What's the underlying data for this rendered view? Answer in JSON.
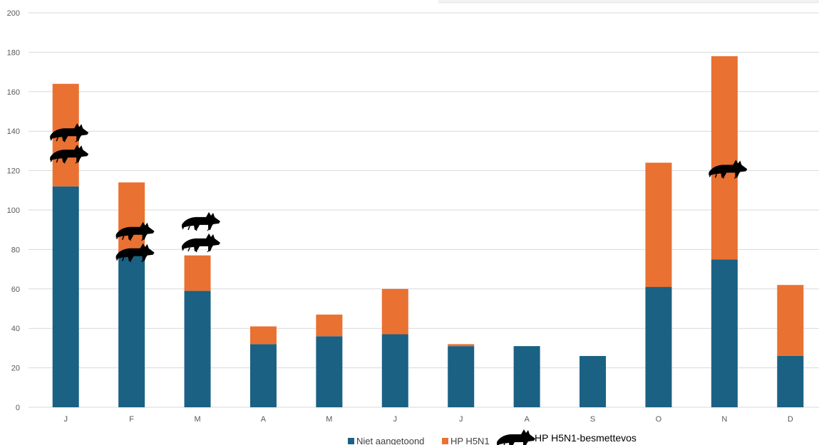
{
  "chart_data": {
    "type": "bar",
    "stacked": true,
    "categories": [
      "J",
      "F",
      "M",
      "A",
      "M",
      "J",
      "J",
      "A",
      "S",
      "O",
      "N",
      "D"
    ],
    "series": [
      {
        "name": "Niet aangetoond",
        "color": "#1a6184",
        "values": [
          112,
          79,
          59,
          32,
          36,
          37,
          31,
          31,
          26,
          61,
          75,
          26
        ]
      },
      {
        "name": "HP H5N1",
        "color": "#e97132",
        "values": [
          52,
          35,
          18,
          9,
          11,
          23,
          1,
          0,
          0,
          63,
          103,
          36
        ]
      }
    ],
    "fox_markers": {
      "name": "HP H5N1-besmette vos",
      "legend_label": "HP H5N1-besmettevos",
      "icon": "fox-icon",
      "counts": [
        2,
        2,
        2,
        0,
        0,
        0,
        0,
        0,
        0,
        0,
        1,
        0
      ]
    },
    "yticks": [
      "0",
      "20",
      "40",
      "60",
      "80",
      "100",
      "120",
      "140",
      "160",
      "180",
      "200"
    ],
    "ylim": [
      0,
      200
    ],
    "grid": true,
    "legend_position": "bottom",
    "title": "",
    "xlabel": "",
    "ylabel": ""
  }
}
